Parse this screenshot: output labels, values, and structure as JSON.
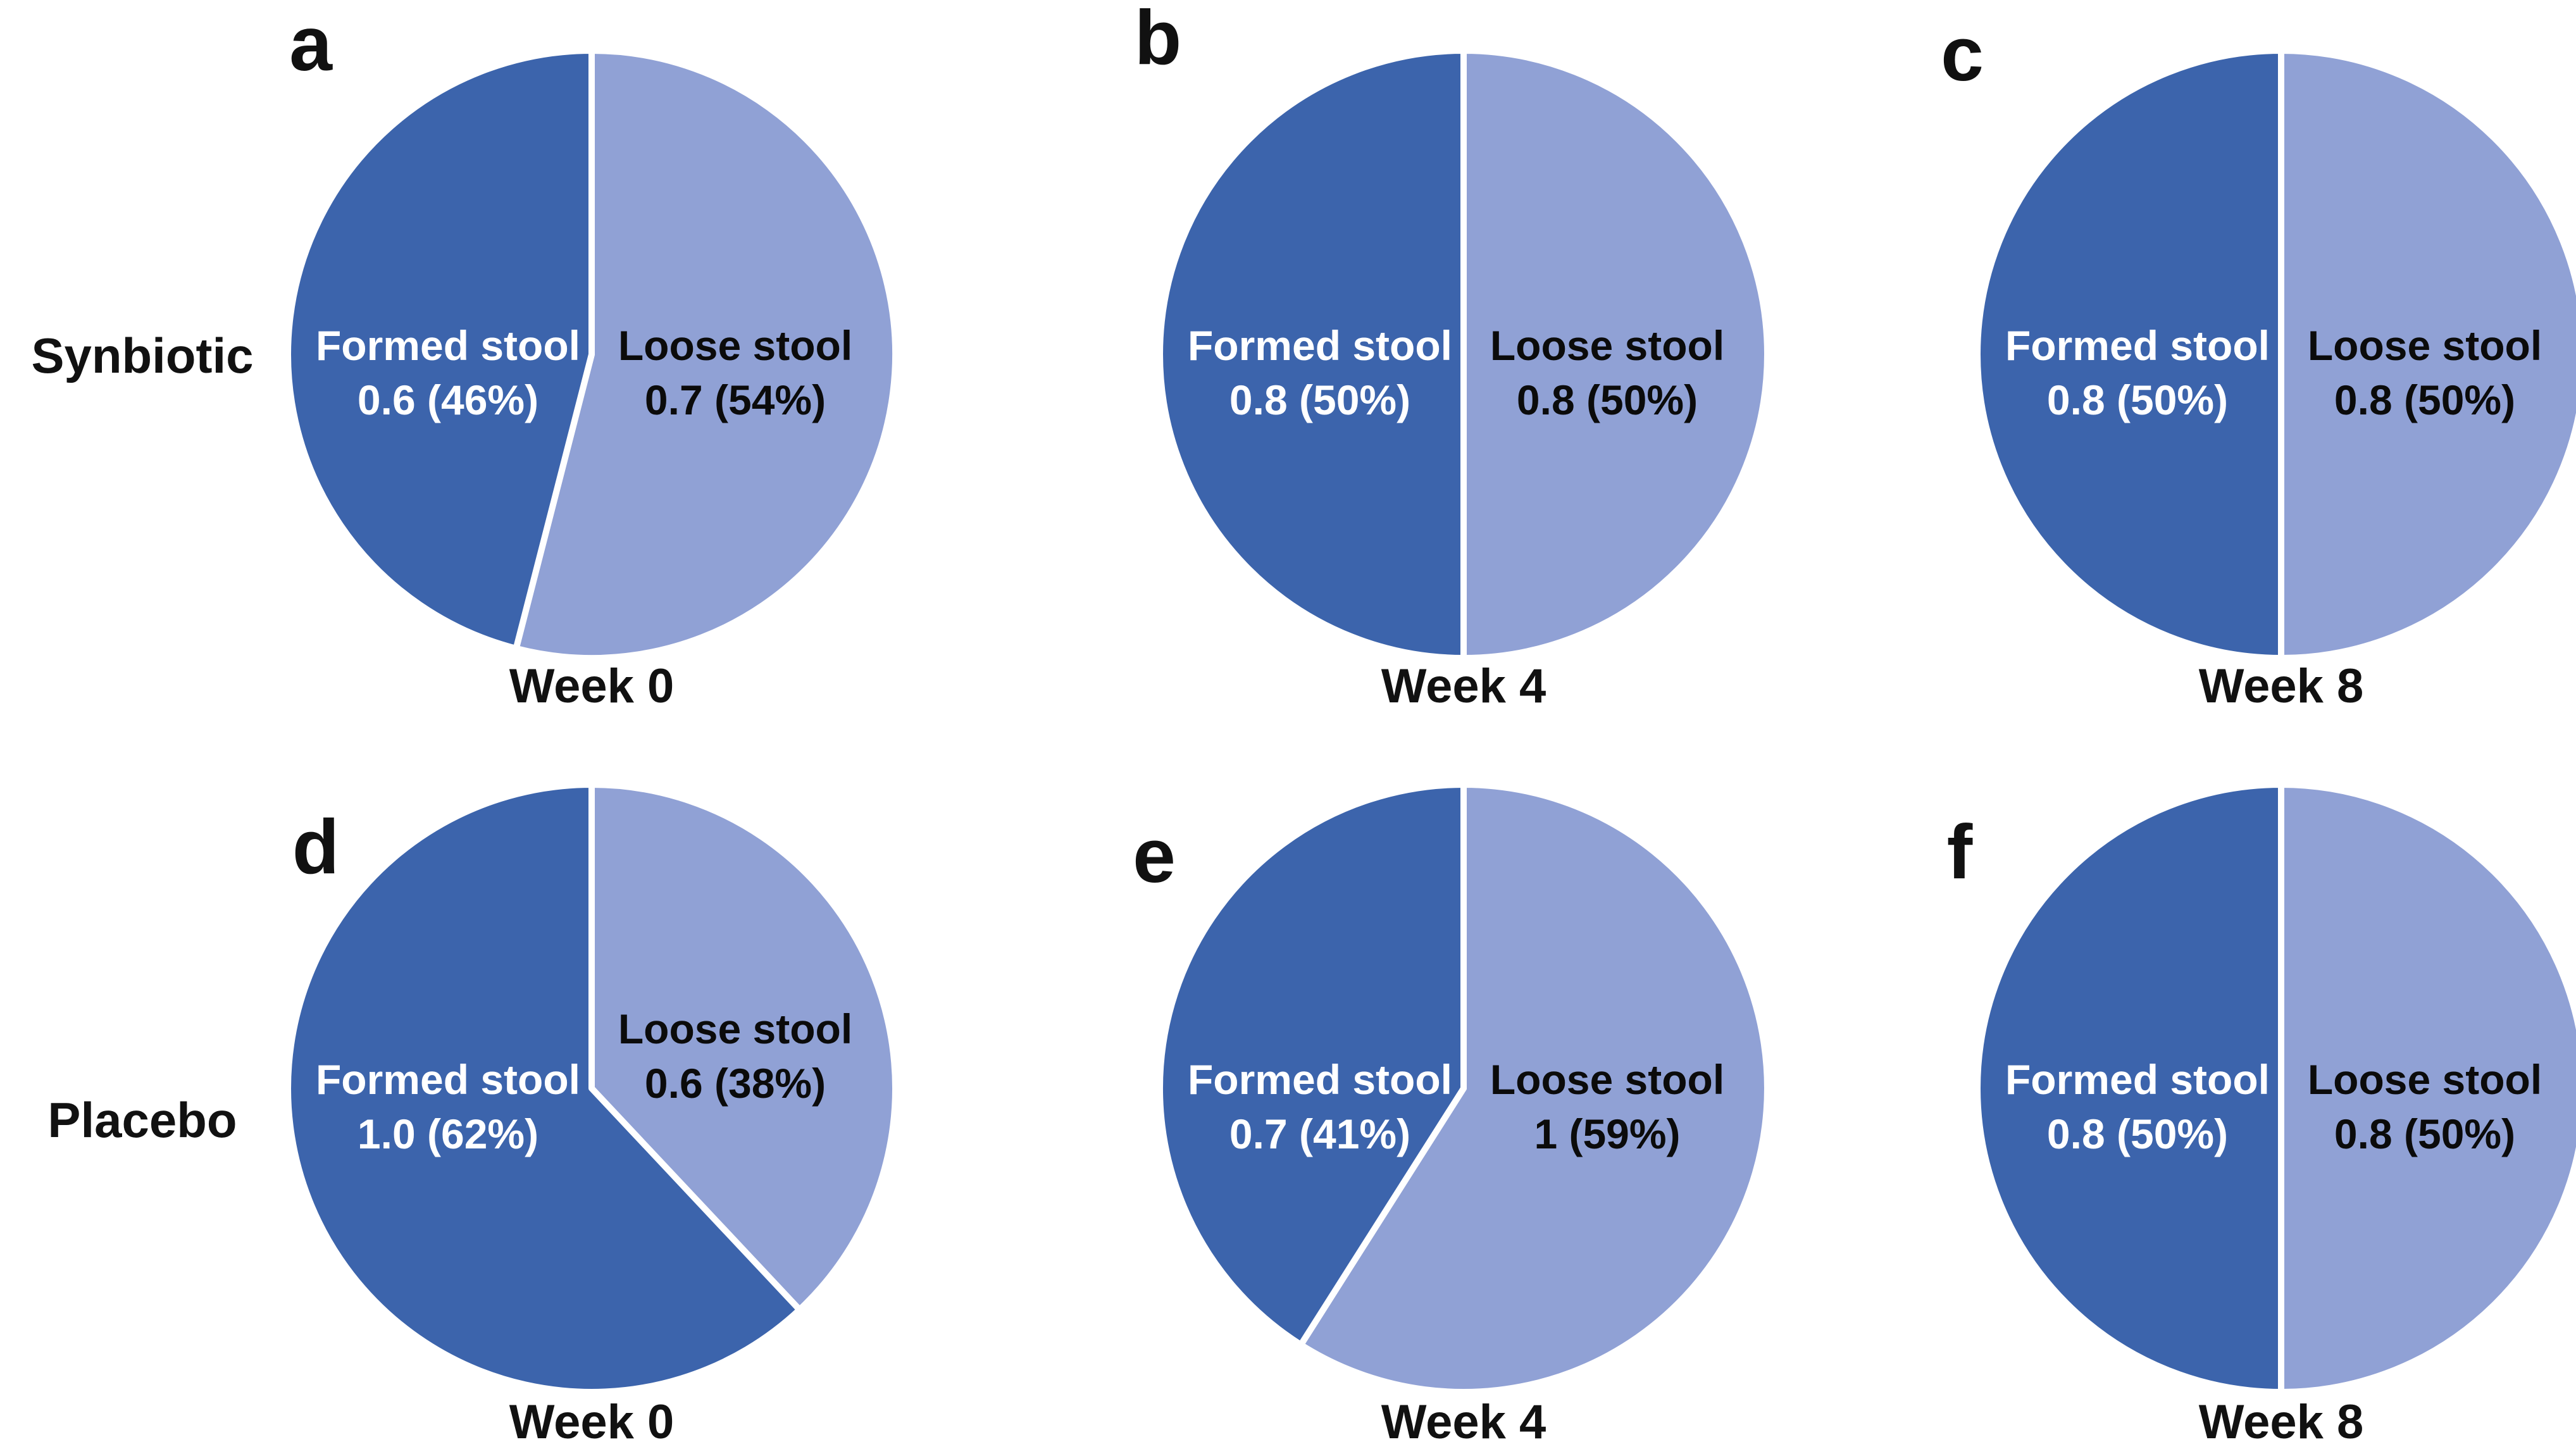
{
  "figure": {
    "background": "#ffffff",
    "row_labels": [
      "Synbiotic",
      "Placebo"
    ],
    "columns": [
      "Week 0",
      "Week 4",
      "Week 8"
    ],
    "layout": {
      "grid": "2 rows x 3 columns",
      "slice_start": "top",
      "first_slice_clockwise": "Loose stool",
      "legend": false,
      "labels_inside_slices": true
    }
  },
  "colors": {
    "formed_slice": "#3c64ac",
    "loose_slice": "#90a1d5",
    "divider": "#ffffff",
    "formed_label_text": "#ffffff",
    "loose_label_text": "#0b0b0b",
    "caption_text": "#111111"
  },
  "chart_data": [
    {
      "type": "pie",
      "panel": "a",
      "group": "Synbiotic",
      "title": "Week 0",
      "labels": [
        "Formed stool",
        "Loose stool"
      ],
      "values": [
        0.6,
        0.7
      ],
      "percents": [
        46,
        54
      ],
      "value_texts": [
        "0.6 (46%)",
        "0.7 (54%)"
      ]
    },
    {
      "type": "pie",
      "panel": "b",
      "group": "Synbiotic",
      "title": "Week 4",
      "labels": [
        "Formed stool",
        "Loose stool"
      ],
      "values": [
        0.8,
        0.8
      ],
      "percents": [
        50,
        50
      ],
      "value_texts": [
        "0.8 (50%)",
        "0.8 (50%)"
      ]
    },
    {
      "type": "pie",
      "panel": "c",
      "group": "Synbiotic",
      "title": "Week 8",
      "labels": [
        "Formed stool",
        "Loose stool"
      ],
      "values": [
        0.8,
        0.8
      ],
      "percents": [
        50,
        50
      ],
      "value_texts": [
        "0.8 (50%)",
        "0.8 (50%)"
      ]
    },
    {
      "type": "pie",
      "panel": "d",
      "group": "Placebo",
      "title": "Week 0",
      "labels": [
        "Formed stool",
        "Loose stool"
      ],
      "values": [
        1.0,
        0.6
      ],
      "percents": [
        62,
        38
      ],
      "value_texts": [
        "1.0 (62%)",
        "0.6 (38%)"
      ]
    },
    {
      "type": "pie",
      "panel": "e",
      "group": "Placebo",
      "title": "Week 4",
      "labels": [
        "Formed stool",
        "Loose stool"
      ],
      "values": [
        0.7,
        1
      ],
      "percents": [
        41,
        59
      ],
      "value_texts": [
        "0.7 (41%)",
        "1 (59%)"
      ]
    },
    {
      "type": "pie",
      "panel": "f",
      "group": "Placebo",
      "title": "Week 8",
      "labels": [
        "Formed stool",
        "Loose stool"
      ],
      "values": [
        0.8,
        0.8
      ],
      "percents": [
        50,
        50
      ],
      "value_texts": [
        "0.8 (50%)",
        "0.8 (50%)"
      ]
    }
  ]
}
